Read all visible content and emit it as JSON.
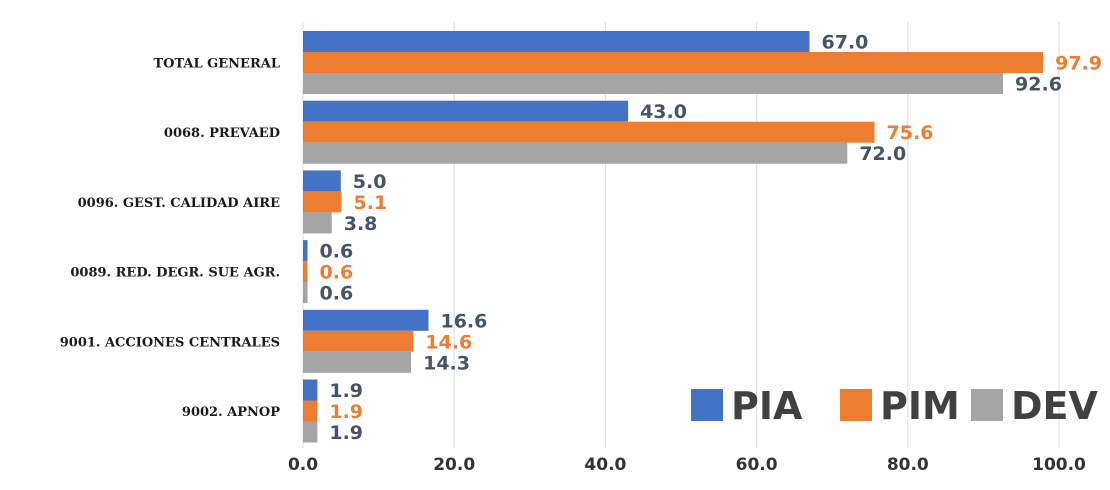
{
  "chart_data": {
    "type": "bar",
    "orientation": "horizontal",
    "categories": [
      "TOTAL GENERAL",
      "0068. PREVAED",
      "0096. GEST. CALIDAD AIRE",
      "0089. RED. DEGR. SUE AGR.",
      "9001. ACCIONES CENTRALES",
      "9002. APNOP"
    ],
    "series": [
      {
        "name": "PIA",
        "color": "#4472C4",
        "label_color": "#44546A",
        "values": [
          67.0,
          43.0,
          5.0,
          0.6,
          16.6,
          1.9
        ],
        "labels": [
          "67.0",
          "43.0",
          "5.0",
          "0.6",
          "16.6",
          "1.9"
        ]
      },
      {
        "name": "PIM",
        "color": "#ED7D31",
        "label_color": "#ED7D31",
        "values": [
          97.9,
          75.6,
          5.1,
          0.6,
          14.6,
          1.9
        ],
        "labels": [
          "97.9",
          "75.6",
          "5.1",
          "0.6",
          "14.6",
          "1.9"
        ]
      },
      {
        "name": "DEV",
        "color": "#A5A5A5",
        "label_color": "#44546A",
        "values": [
          92.6,
          72.0,
          3.8,
          0.6,
          14.3,
          1.9
        ],
        "labels": [
          "92.6",
          "72.0",
          "3.8",
          "0.6",
          "14.3",
          "1.9"
        ]
      }
    ],
    "xlim": [
      0,
      100
    ],
    "ticks": [
      "0.0",
      "20.0",
      "40.0",
      "60.0",
      "80.0",
      "100.0"
    ],
    "tick_values": [
      0,
      20,
      40,
      60,
      80,
      100
    ],
    "grid": true,
    "legend_position": "bottom-right"
  }
}
